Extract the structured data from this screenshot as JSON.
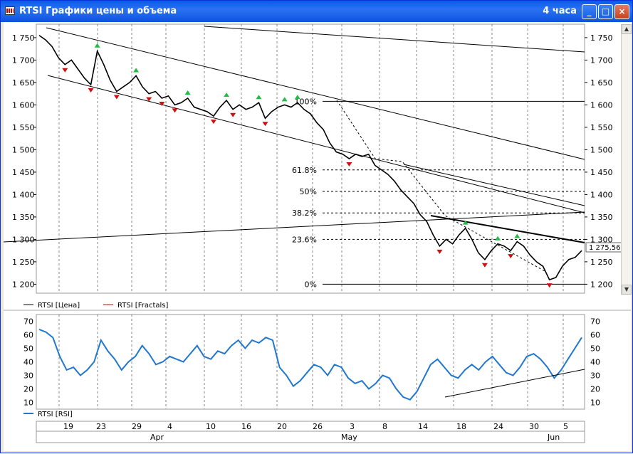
{
  "window": {
    "title": "RTSI Графики цены и объема",
    "timeframe": "4 часа",
    "buttons": {
      "minimize": "_",
      "maximize": "□",
      "close": "×"
    }
  },
  "price_panel": {
    "y_ticks": [
      "1 750",
      "1 700",
      "1 650",
      "1 600",
      "1 550",
      "1 500",
      "1 450",
      "1 400",
      "1 350",
      "1 300",
      "1 250",
      "1 200"
    ],
    "last_price_label": "1 275,56",
    "fib_levels": [
      {
        "label": "100%",
        "value": 1608
      },
      {
        "label": "61.8%",
        "value": 1455
      },
      {
        "label": "50%",
        "value": 1407
      },
      {
        "label": "38.2%",
        "value": 1359
      },
      {
        "label": "23.6%",
        "value": 1300
      },
      {
        "label": "0%",
        "value": 1200
      }
    ],
    "legend": [
      {
        "label": "RTSI [Цена]",
        "color": "#000000"
      },
      {
        "label": "RTSI [Fractals]",
        "color": "#cc0000"
      }
    ]
  },
  "rsi_panel": {
    "y_ticks": [
      "70",
      "60",
      "50",
      "40",
      "30",
      "20",
      "10"
    ],
    "legend": [
      {
        "label": "RTSI [RSI]",
        "color": "#1f77d0"
      }
    ]
  },
  "x_axis": {
    "day_labels": [
      "19",
      "23",
      "29",
      "4",
      "10",
      "16",
      "20",
      "26",
      "3",
      "8",
      "14",
      "18",
      "24",
      "30",
      "5"
    ],
    "month_labels": [
      "Apr",
      "May",
      "Jun"
    ]
  },
  "chart_data": [
    {
      "type": "line",
      "title": "",
      "series": [
        {
          "name": "RTSI [Цена]",
          "values": [
            1755,
            1745,
            1730,
            1705,
            1690,
            1700,
            1680,
            1660,
            1645,
            1720,
            1690,
            1655,
            1630,
            1640,
            1650,
            1665,
            1640,
            1625,
            1630,
            1615,
            1620,
            1600,
            1605,
            1615,
            1595,
            1590,
            1585,
            1575,
            1595,
            1610,
            1590,
            1600,
            1590,
            1595,
            1605,
            1570,
            1585,
            1595,
            1600,
            1595,
            1605,
            1590,
            1580,
            1560,
            1545,
            1515,
            1495,
            1490,
            1480,
            1490,
            1485,
            1490,
            1465,
            1455,
            1445,
            1430,
            1410,
            1395,
            1380,
            1355,
            1340,
            1310,
            1285,
            1300,
            1290,
            1310,
            1325,
            1300,
            1270,
            1255,
            1275,
            1290,
            1285,
            1275,
            1295,
            1285,
            1265,
            1250,
            1240,
            1210,
            1215,
            1240,
            1255,
            1260,
            1275
          ]
        }
      ],
      "ylim": [
        1180,
        1780
      ],
      "y_ticks": [
        1750,
        1700,
        1650,
        1600,
        1550,
        1500,
        1450,
        1400,
        1350,
        1300,
        1250,
        1200
      ]
    },
    {
      "type": "line",
      "title": "",
      "series": [
        {
          "name": "RTSI [RSI]",
          "values": [
            64,
            62,
            58,
            44,
            34,
            36,
            30,
            34,
            40,
            56,
            48,
            42,
            34,
            40,
            44,
            52,
            46,
            38,
            40,
            44,
            42,
            40,
            46,
            52,
            44,
            42,
            48,
            46,
            52,
            56,
            50,
            56,
            54,
            58,
            56,
            36,
            30,
            22,
            26,
            32,
            38,
            36,
            30,
            38,
            36,
            28,
            24,
            26,
            20,
            24,
            30,
            28,
            20,
            14,
            12,
            18,
            28,
            38,
            42,
            36,
            30,
            28,
            34,
            38,
            34,
            40,
            44,
            38,
            32,
            30,
            36,
            44,
            46,
            42,
            36,
            28,
            34,
            42,
            50,
            58
          ]
        }
      ],
      "ylim": [
        5,
        75
      ],
      "y_ticks": [
        70,
        60,
        50,
        40,
        30,
        20,
        10
      ]
    }
  ]
}
